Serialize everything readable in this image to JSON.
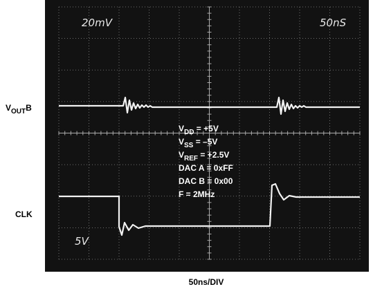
{
  "scope": {
    "volts_per_div": "20mV",
    "time_per_div": "50nS",
    "clk_scale": "5V",
    "time_base_caption": "50ns/DIV"
  },
  "trace_labels": {
    "vout": {
      "base": "V",
      "sub": "OUT",
      "rest": "B"
    },
    "clk": "CLK"
  },
  "conditions": [
    {
      "base": "V",
      "sub": "DD",
      "rest": " = +5V"
    },
    {
      "base": "V",
      "sub": "SS",
      "rest": " = –5V"
    },
    {
      "base": "V",
      "sub": "REF",
      "rest": " = +2.5V"
    },
    {
      "base": "DAC A = 0xFF"
    },
    {
      "base": "DAC B = 0x00"
    },
    {
      "base": "F = 2MHz"
    }
  ]
}
